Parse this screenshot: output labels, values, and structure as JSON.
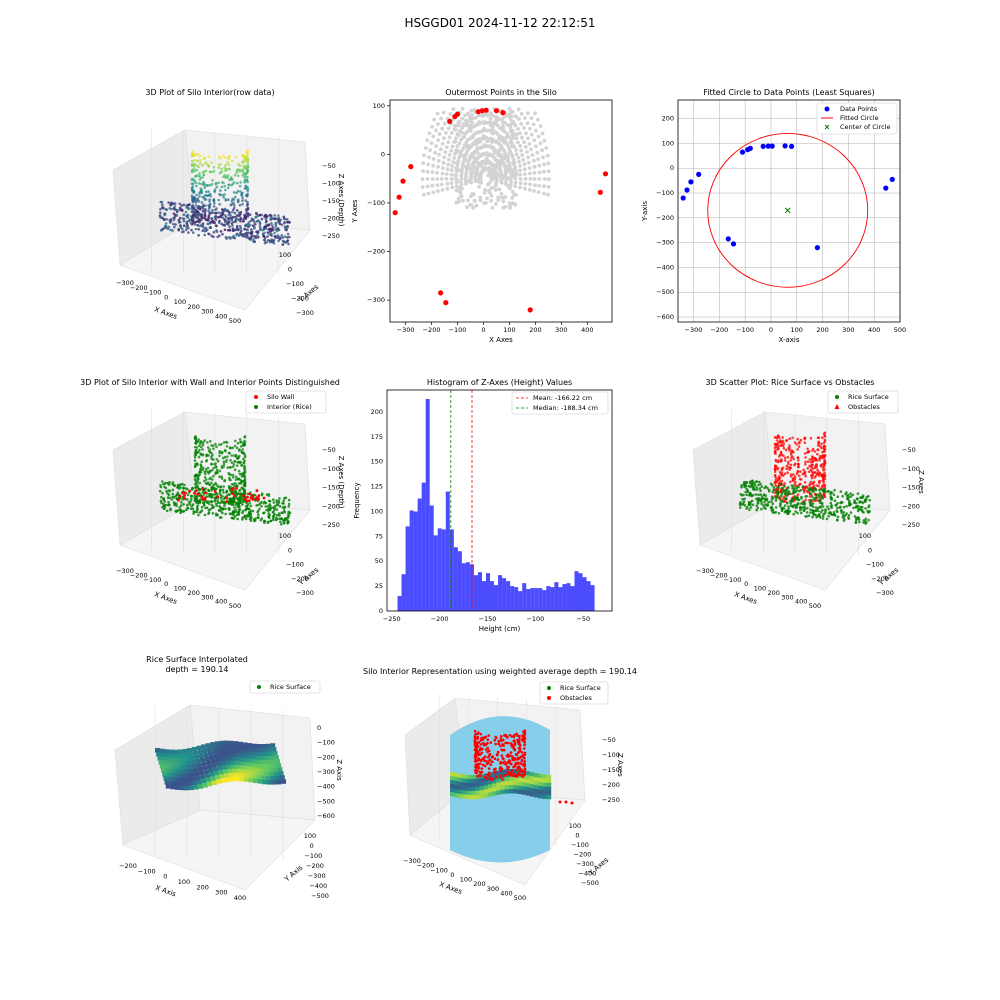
{
  "figure": {
    "suptitle": "HSGGD01 2024-11-12 22:12:51"
  },
  "colors": {
    "red": "#ff0000",
    "green": "#008000",
    "blue": "#0000ff",
    "gray": "#d3d3d3",
    "skyblue": "#87ceeb",
    "hist": "#0000ff"
  },
  "chart_data": [
    {
      "type": "scatter",
      "projection": "3d",
      "title": "3D Plot of Silo Interior(row data)",
      "xlabel": "X Axes",
      "ylabel": "Y Axes",
      "zlabel": "Z Axes (Depth)",
      "xticks": [
        "−300",
        "−200",
        "−100",
        "0",
        "100",
        "200",
        "300",
        "400",
        "500"
      ],
      "yticks": [
        "100",
        "0",
        "−100",
        "−200",
        "−300"
      ],
      "zticks": [
        "−50",
        "−100",
        "−150",
        "−200",
        "−250"
      ],
      "colormap": "viridis"
    },
    {
      "type": "scatter",
      "title": "Outermost Points in the Silo",
      "xlabel": "X Axes",
      "ylabel": "Y Axes",
      "xlim": [
        -360,
        495
      ],
      "ylim": [
        -345,
        112
      ],
      "xticks": [
        -300,
        -200,
        -100,
        0,
        100,
        200,
        300,
        400
      ],
      "yticks": [
        100,
        0,
        -100,
        -200,
        -300
      ],
      "outermost_points": [
        [
          -340,
          -120
        ],
        [
          -325,
          -88
        ],
        [
          -310,
          -55
        ],
        [
          -280,
          -25
        ],
        [
          -130,
          68
        ],
        [
          -110,
          78
        ],
        [
          -100,
          83
        ],
        [
          -20,
          88
        ],
        [
          -5,
          90
        ],
        [
          10,
          91
        ],
        [
          50,
          90
        ],
        [
          75,
          86
        ],
        [
          180,
          -320
        ],
        [
          450,
          -78
        ],
        [
          470,
          -40
        ],
        [
          -165,
          -285
        ],
        [
          -145,
          -305
        ]
      ],
      "interior_color": "lightgray"
    },
    {
      "type": "scatter",
      "title": "Fitted Circle to Data Points (Least Squares)",
      "xlabel": "X-axis",
      "ylabel": "Y-axis",
      "xlim": [
        -360,
        500
      ],
      "ylim": [
        -620,
        275
      ],
      "xticks": [
        -300,
        -200,
        -100,
        0,
        100,
        200,
        300,
        400,
        500
      ],
      "yticks": [
        200,
        100,
        0,
        -100,
        -200,
        -300,
        -400,
        -500,
        -600
      ],
      "grid": true,
      "legend": [
        "Data Points",
        "Fitted Circle",
        "Center of Circle"
      ],
      "legend_position": "upper right",
      "points": [
        [
          -340,
          -120
        ],
        [
          -325,
          -88
        ],
        [
          -310,
          -55
        ],
        [
          -280,
          -25
        ],
        [
          -110,
          65
        ],
        [
          -90,
          75
        ],
        [
          -80,
          80
        ],
        [
          -30,
          88
        ],
        [
          -10,
          89
        ],
        [
          5,
          89
        ],
        [
          55,
          90
        ],
        [
          80,
          88
        ],
        [
          180,
          -320
        ],
        [
          445,
          -80
        ],
        [
          470,
          -45
        ],
        [
          -165,
          -285
        ],
        [
          -145,
          -305
        ]
      ],
      "circle": {
        "center": [
          65,
          -170
        ],
        "radius": 310
      }
    },
    {
      "type": "scatter",
      "projection": "3d",
      "title": "3D Plot of Silo Interior with Wall and Interior Points Distinguished",
      "xlabel": "X Axes",
      "ylabel": "Y Axes",
      "zlabel": "Z Axes (Depth)",
      "xticks": [
        "−300",
        "−200",
        "−100",
        "0",
        "100",
        "200",
        "300",
        "400",
        "500"
      ],
      "yticks": [
        "100",
        "0",
        "−100",
        "−200",
        "−300"
      ],
      "zticks": [
        "−50",
        "−100",
        "−150",
        "−200",
        "−250"
      ],
      "legend": [
        "Silo Wall",
        "Interior (Rice)"
      ],
      "legend_position": "upper right"
    },
    {
      "type": "bar",
      "title": "Histogram of Z-Axes (Height) Values",
      "xlabel": "Height (cm)",
      "ylabel": "Frequency",
      "xlim": [
        -255,
        -20
      ],
      "ylim": [
        0,
        222
      ],
      "xticks": [
        -250,
        -200,
        -150,
        -100,
        -50
      ],
      "yticks": [
        0,
        25,
        50,
        75,
        100,
        125,
        150,
        175,
        200
      ],
      "bin_start": -244,
      "bin_width": 4.2,
      "values": [
        15,
        37,
        85,
        101,
        100,
        113,
        129,
        213,
        106,
        76,
        83,
        82,
        120,
        82,
        64,
        60,
        48,
        49,
        47,
        36,
        39,
        30,
        38,
        30,
        26,
        36,
        33,
        30,
        25,
        24,
        20,
        28,
        22,
        23,
        23,
        23,
        21,
        25,
        24,
        29,
        24,
        27,
        28,
        25,
        40,
        38,
        34,
        30,
        26
      ],
      "mean": -166.22,
      "median": -188.34,
      "legend": [
        "Mean: -166.22 cm",
        "Median: -188.34 cm"
      ],
      "legend_position": "upper right"
    },
    {
      "type": "scatter",
      "projection": "3d",
      "title": "3D Scatter Plot: Rice Surface vs Obstacles",
      "xlabel": "X Axes",
      "ylabel": "Y Axes",
      "zlabel": "Z Axes",
      "xticks": [
        "−300",
        "−200",
        "−100",
        "0",
        "100",
        "200",
        "300",
        "400",
        "500"
      ],
      "yticks": [
        "100",
        "0",
        "−100",
        "−200",
        "−300"
      ],
      "zticks": [
        "−50",
        "−100",
        "−150",
        "−200",
        "−250"
      ],
      "legend": [
        "Rice Surface",
        "Obstacles"
      ],
      "legend_position": "upper right"
    },
    {
      "type": "area",
      "projection": "3d",
      "title": "Rice Surface Interpolated",
      "subtitle": "depth = 190.14",
      "xlabel": "X Axis",
      "ylabel": "Y Axis",
      "zlabel": "Z Axis",
      "xticks": [
        "−200",
        "−100",
        "0",
        "100",
        "200",
        "300",
        "400"
      ],
      "yticks": [
        "100",
        "0",
        "−100",
        "−200",
        "−300",
        "−400",
        "−500"
      ],
      "zticks": [
        "0",
        "−100",
        "−200",
        "−300",
        "−400",
        "−500",
        "−600"
      ],
      "legend": [
        "Rice Surface"
      ],
      "legend_position": "upper right"
    },
    {
      "type": "area",
      "projection": "3d",
      "title": "Silo Interior Representation using weighted average depth = 190.14",
      "xlabel": "X Axes",
      "ylabel": "Y Axes",
      "zlabel": "Z Axes",
      "xticks": [
        "−300",
        "−200",
        "−100",
        "0",
        "100",
        "200",
        "300",
        "400",
        "500"
      ],
      "yticks": [
        "100",
        "0",
        "−100",
        "−200",
        "−300",
        "−400",
        "−500"
      ],
      "zticks": [
        "−50",
        "−100",
        "−150",
        "−200",
        "−250"
      ],
      "legend": [
        "Rice Surface",
        "Obstacles"
      ],
      "legend_position": "upper center"
    }
  ]
}
